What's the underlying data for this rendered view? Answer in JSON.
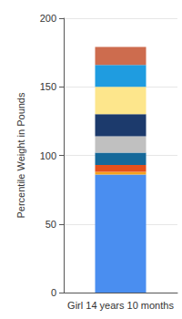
{
  "chart_data": {
    "type": "bar",
    "y_label": "Percentile Weight in Pounds",
    "categories": [
      "Girl 14 years 10 months"
    ],
    "stacked": true,
    "series": [
      {
        "color": "#4a8ef0",
        "values": [
          86
        ]
      },
      {
        "color": "#f5a21e",
        "values": [
          2
        ]
      },
      {
        "color": "#e5501c",
        "values": [
          5
        ]
      },
      {
        "color": "#16699a",
        "values": [
          9
        ]
      },
      {
        "color": "#c0c0c0",
        "values": [
          12
        ]
      },
      {
        "color": "#1c3a6c",
        "values": [
          16
        ]
      },
      {
        "color": "#fde68c",
        "values": [
          20
        ]
      },
      {
        "color": "#1f9ce0",
        "values": [
          16
        ]
      },
      {
        "color": "#cd6c4e",
        "values": [
          13
        ]
      }
    ],
    "ylim": [
      0,
      200
    ],
    "yticks": [
      0,
      50,
      100,
      150,
      200
    ],
    "grid": true
  }
}
